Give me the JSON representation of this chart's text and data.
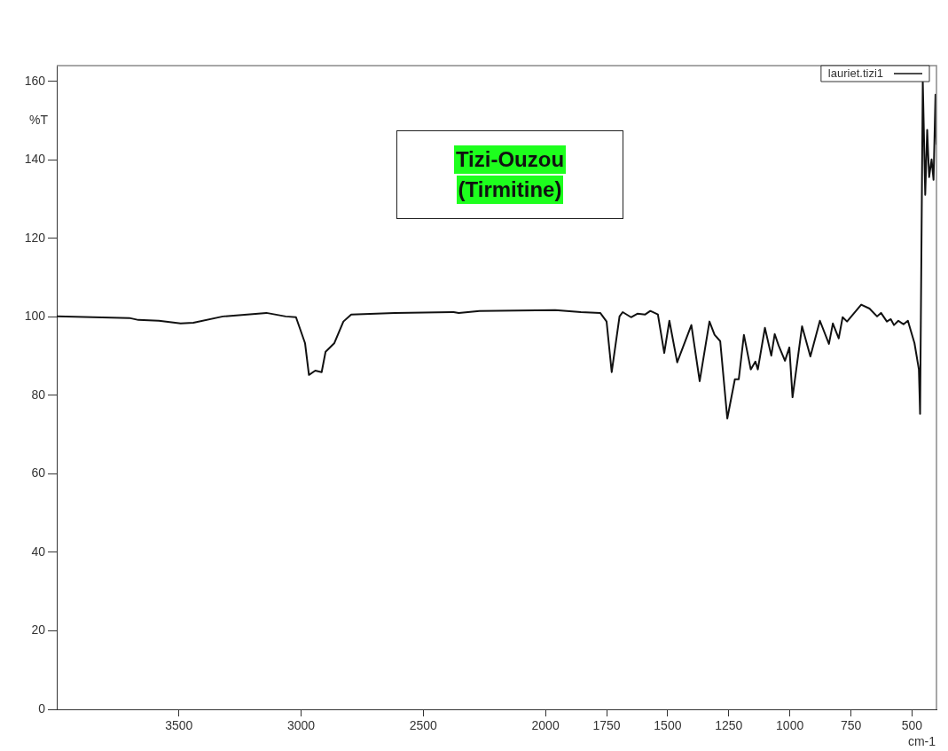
{
  "chart_data": {
    "type": "line",
    "ylabel": "%T",
    "xlabel": "cm-1",
    "annotations": [
      "Tizi-Ouzou",
      "(Tirmitine)"
    ],
    "xlim": [
      4000,
      400
    ],
    "ylim": [
      0,
      164
    ],
    "xticks": [
      3500,
      3000,
      2500,
      2000,
      1750,
      1500,
      1250,
      1000,
      750,
      500
    ],
    "yticks": [
      0,
      20,
      40,
      60,
      80,
      100,
      120,
      140,
      160
    ],
    "grid": false,
    "legend": "top right",
    "marker": "none",
    "line_style": "solid",
    "series": [
      {
        "name": "lauriet.tizi1",
        "color": "#111111",
        "x": [
          4000,
          3703,
          3666,
          3582,
          3493,
          3441,
          3320,
          3142,
          3063,
          3021,
          2984,
          2968,
          2942,
          2916,
          2900,
          2864,
          2827,
          2795,
          2617,
          2376,
          2355,
          2270,
          1960,
          1855,
          1776,
          1750,
          1729,
          1697,
          1684,
          1650,
          1624,
          1592,
          1571,
          1540,
          1514,
          1493,
          1461,
          1403,
          1369,
          1329,
          1308,
          1285,
          1256,
          1225,
          1209,
          1188,
          1160,
          1141,
          1131,
          1102,
          1076,
          1062,
          1046,
          1020,
          1002,
          989,
          950,
          916,
          877,
          840,
          824,
          800,
          784,
          766,
          708,
          674,
          643,
          627,
          603,
          587,
          574,
          556,
          535,
          517,
          490,
          472,
          467,
          456,
          446,
          438,
          430,
          420,
          412,
          404,
          400
        ],
        "values": [
          100.1,
          99.7,
          99.2,
          99.0,
          98.3,
          98.5,
          100.1,
          101.0,
          100.1,
          99.9,
          93.3,
          85.2,
          86.3,
          85.9,
          91.1,
          93.3,
          98.8,
          100.6,
          101.0,
          101.2,
          101.0,
          101.5,
          101.7,
          101.2,
          101.0,
          98.8,
          85.9,
          100.1,
          101.2,
          99.9,
          100.8,
          100.6,
          101.5,
          100.6,
          90.8,
          99.0,
          88.4,
          97.9,
          83.6,
          98.8,
          95.4,
          93.8,
          74.1,
          84.1,
          84.1,
          95.4,
          86.6,
          88.6,
          86.6,
          97.2,
          90.1,
          95.6,
          92.7,
          88.8,
          92.2,
          79.5,
          97.6,
          89.9,
          99.0,
          93.1,
          98.3,
          94.5,
          99.9,
          98.8,
          103.1,
          102.1,
          100.1,
          101.0,
          98.8,
          99.4,
          97.9,
          99.0,
          98.1,
          99.0,
          93.3,
          86.6,
          75.3,
          159.8,
          131.1,
          147.6,
          135.6,
          140.1,
          134.9,
          156.6,
          144
        ]
      }
    ]
  }
}
